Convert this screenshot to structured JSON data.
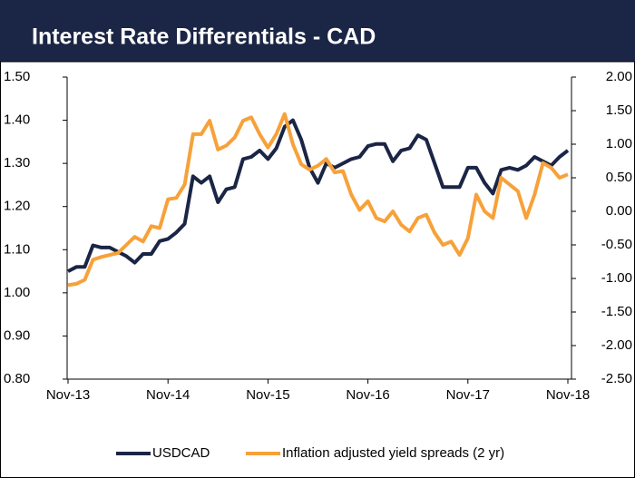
{
  "chart_data": {
    "type": "line",
    "title": "Interest Rate Differentials - CAD",
    "categories": [
      "Nov-13",
      null,
      null,
      null,
      null,
      null,
      null,
      null,
      null,
      null,
      null,
      null,
      "Nov-14",
      null,
      null,
      null,
      null,
      null,
      null,
      null,
      null,
      null,
      null,
      null,
      "Nov-15",
      null,
      null,
      null,
      null,
      null,
      null,
      null,
      null,
      null,
      null,
      null,
      "Nov-16",
      null,
      null,
      null,
      null,
      null,
      null,
      null,
      null,
      null,
      null,
      null,
      "Nov-17",
      null,
      null,
      null,
      null,
      null,
      null,
      null,
      null,
      null,
      null,
      null,
      "Nov-18"
    ],
    "series": [
      {
        "name": "USDCAD",
        "color": "#1b2545",
        "axis": "y",
        "values": [
          1.05,
          1.06,
          1.06,
          1.11,
          1.105,
          1.105,
          1.095,
          1.085,
          1.07,
          1.09,
          1.09,
          1.12,
          1.125,
          1.14,
          1.16,
          1.27,
          1.255,
          1.27,
          1.21,
          1.24,
          1.245,
          1.31,
          1.315,
          1.33,
          1.31,
          1.335,
          1.385,
          1.4,
          1.355,
          1.29,
          1.255,
          1.3,
          1.29,
          1.3,
          1.31,
          1.315,
          1.34,
          1.345,
          1.345,
          1.305,
          1.33,
          1.335,
          1.365,
          1.355,
          1.3,
          1.245,
          1.245,
          1.245,
          1.29,
          1.29,
          1.255,
          1.23,
          1.285,
          1.29,
          1.285,
          1.295,
          1.315,
          1.305,
          1.295,
          1.315,
          1.33
        ]
      },
      {
        "name": "Inflation adjusted yield spreads (2 yr)",
        "color": "#f7a13a",
        "axis": "y2",
        "values": [
          -1.1,
          -1.08,
          -1.02,
          -0.72,
          -0.68,
          -0.65,
          -0.62,
          -0.5,
          -0.38,
          -0.45,
          -0.22,
          -0.25,
          0.18,
          0.2,
          0.4,
          1.15,
          1.15,
          1.35,
          0.92,
          0.98,
          1.1,
          1.35,
          1.4,
          1.15,
          0.95,
          1.15,
          1.45,
          1.0,
          0.7,
          0.62,
          0.68,
          0.78,
          0.58,
          0.6,
          0.25,
          0.02,
          0.15,
          -0.1,
          -0.15,
          0.0,
          -0.2,
          -0.3,
          -0.1,
          -0.05,
          -0.32,
          -0.5,
          -0.45,
          -0.65,
          -0.4,
          0.25,
          0.0,
          -0.1,
          0.5,
          0.4,
          0.3,
          -0.1,
          0.25,
          0.72,
          0.65,
          0.5,
          0.55
        ]
      }
    ],
    "ylim": [
      0.8,
      1.5
    ],
    "yticks": [
      {
        "value": 0.8,
        "label": "0.80"
      },
      {
        "value": 0.9,
        "label": "0.90"
      },
      {
        "value": 1.0,
        "label": "1.00"
      },
      {
        "value": 1.1,
        "label": "1.10"
      },
      {
        "value": 1.2,
        "label": "1.20"
      },
      {
        "value": 1.3,
        "label": "1.30"
      },
      {
        "value": 1.4,
        "label": "1.40"
      },
      {
        "value": 1.5,
        "label": "1.50"
      }
    ],
    "y2lim": [
      -2.5,
      2.0
    ],
    "y2ticks": [
      {
        "value": -2.5,
        "label": "-2.50"
      },
      {
        "value": -2.0,
        "label": "-2.00"
      },
      {
        "value": -1.5,
        "label": "-1.50"
      },
      {
        "value": -1.0,
        "label": "-1.00"
      },
      {
        "value": -0.5,
        "label": "-0.50"
      },
      {
        "value": 0,
        "label": "0.00"
      },
      {
        "value": 0.5,
        "label": "0.50"
      },
      {
        "value": 1.0,
        "label": "1.00"
      },
      {
        "value": 1.5,
        "label": "1.50"
      },
      {
        "value": 2.0,
        "label": "2.00"
      }
    ],
    "grid": false,
    "legend": "bottom"
  }
}
